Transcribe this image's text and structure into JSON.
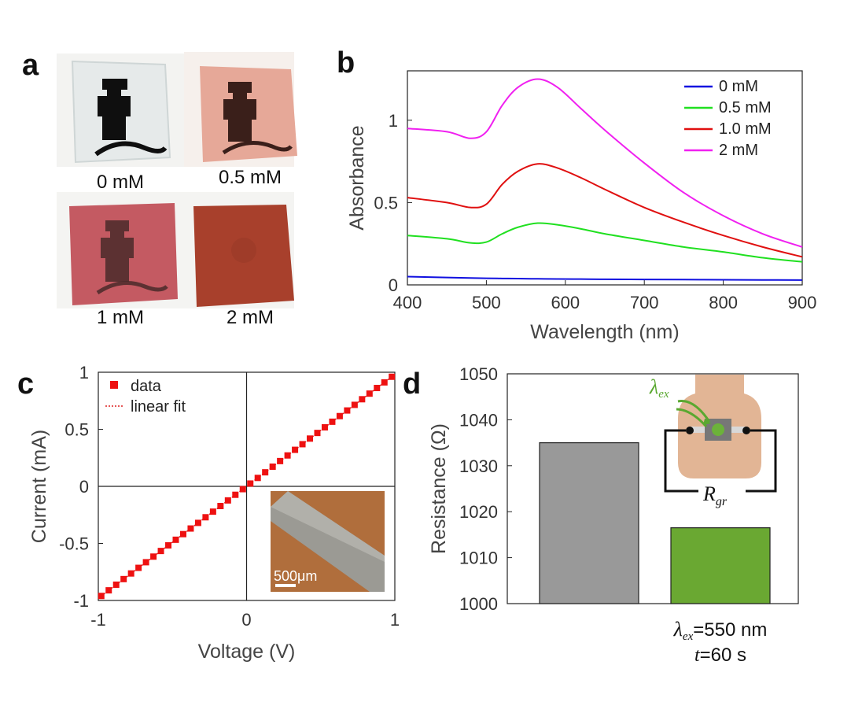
{
  "panel_labels": [
    "a",
    "b",
    "c",
    "d"
  ],
  "panel_a": {
    "samples": [
      {
        "label": "0 mM",
        "color": "#ecefef",
        "logo": "#111111"
      },
      {
        "label": "0.5 mM",
        "color": "#e6a898",
        "logo": "#3a1f1a"
      },
      {
        "label": "1 mM",
        "color": "#c45a62",
        "logo": "#4a2a2a"
      },
      {
        "label": "2 mM",
        "color": "#a8402c",
        "logo": "#9a3a28"
      }
    ]
  },
  "chart_data": [
    {
      "panel": "b",
      "type": "line",
      "xlabel": "Wavelength (nm)",
      "ylabel": "Absorbance",
      "xlim": [
        400,
        900
      ],
      "ylim": [
        0,
        1.3
      ],
      "xticks": [
        "400",
        "500",
        "600",
        "700",
        "800",
        "900"
      ],
      "yticks": [
        "0",
        "0.5",
        "1"
      ],
      "legend_position": "top-right",
      "x": [
        400,
        450,
        480,
        500,
        520,
        540,
        565,
        590,
        620,
        650,
        700,
        750,
        800,
        850,
        900
      ],
      "series": [
        {
          "name": "0 mM",
          "color": "#1010e0",
          "values": [
            0.05,
            0.045,
            0.042,
            0.04,
            0.039,
            0.038,
            0.037,
            0.036,
            0.035,
            0.034,
            0.033,
            0.032,
            0.031,
            0.03,
            0.029
          ]
        },
        {
          "name": "0.5 mM",
          "color": "#20e020",
          "values": [
            0.3,
            0.28,
            0.255,
            0.26,
            0.31,
            0.35,
            0.375,
            0.365,
            0.34,
            0.31,
            0.27,
            0.23,
            0.2,
            0.165,
            0.14
          ]
        },
        {
          "name": "1.0 mM",
          "color": "#e01010",
          "values": [
            0.53,
            0.5,
            0.47,
            0.49,
            0.61,
            0.69,
            0.735,
            0.71,
            0.65,
            0.58,
            0.47,
            0.38,
            0.3,
            0.23,
            0.17
          ]
        },
        {
          "name": "2 mM",
          "color": "#f020f0",
          "values": [
            0.95,
            0.93,
            0.89,
            0.93,
            1.09,
            1.2,
            1.25,
            1.2,
            1.07,
            0.94,
            0.74,
            0.56,
            0.42,
            0.31,
            0.23
          ]
        }
      ]
    },
    {
      "panel": "c",
      "type": "scatter",
      "xlabel": "Voltage (V)",
      "ylabel": "Current (mA)",
      "xlim": [
        -1,
        1
      ],
      "ylim": [
        -1,
        1
      ],
      "xticks": [
        "-1",
        "0",
        "1"
      ],
      "yticks": [
        "-1",
        "-0.5",
        "0",
        "0.5",
        "1"
      ],
      "legend_position": "top-left",
      "series": [
        {
          "name": "data",
          "color": "#ee1111",
          "marker": "square",
          "x_start": -0.98,
          "x_end": 0.98,
          "count": 40,
          "slope": 0.98
        },
        {
          "name": "linear fit",
          "color": "#dd2222",
          "style": "dotted"
        }
      ],
      "inset_scale_label": "500μm"
    },
    {
      "panel": "d",
      "type": "bar",
      "ylabel": "Resistance (Ω)",
      "ylim": [
        1000,
        1050
      ],
      "yticks": [
        "1000",
        "1010",
        "1020",
        "1030",
        "1040",
        "1050"
      ],
      "values": [
        1035,
        1016.5
      ],
      "colors": [
        "#999999",
        "#6aa832"
      ],
      "caption": {
        "line1_symbol": "λ",
        "line1_sub": "ex",
        "line1_value": "=550 nm",
        "line2_symbol": "t",
        "line2_value": "=60 s"
      },
      "inset": {
        "lambda": "λ",
        "lambda_sub": "ex",
        "resistor": "R",
        "resistor_sub": "gr"
      }
    }
  ]
}
